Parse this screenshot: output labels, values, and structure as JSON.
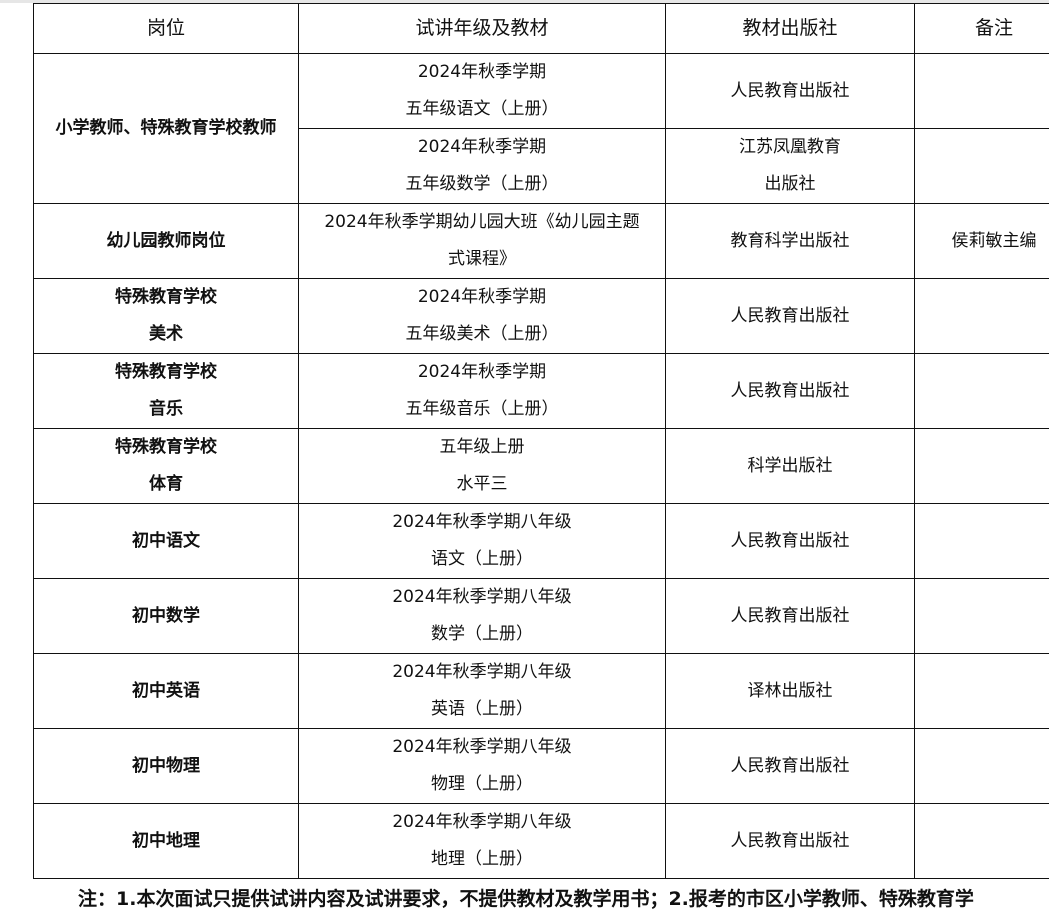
{
  "headers": [
    "岗位",
    "试讲年级及教材",
    "教材出版社",
    "备注"
  ],
  "rows": [
    {
      "position": "小学教师、特殊教育学校教师",
      "material": [
        "2024年秋季学期",
        "五年级语文（上册）"
      ],
      "publisher": [
        "人民教育出版社"
      ],
      "note": ""
    },
    {
      "material": [
        "2024年秋季学期",
        "五年级数学（上册）"
      ],
      "publisher": [
        "江苏凤凰教育",
        "出版社"
      ],
      "note": ""
    },
    {
      "position": [
        "幼儿园教师岗位"
      ],
      "material": [
        "2024年秋季学期幼儿园大班《幼儿园主题",
        "式课程》"
      ],
      "publisher": [
        "教育科学出版社"
      ],
      "note": "侯莉敏主编"
    },
    {
      "position": [
        "特殊教育学校",
        "美术"
      ],
      "material": [
        "2024年秋季学期",
        "五年级美术（上册）"
      ],
      "publisher": [
        "人民教育出版社"
      ],
      "note": ""
    },
    {
      "position": [
        "特殊教育学校",
        "音乐"
      ],
      "material": [
        "2024年秋季学期",
        "五年级音乐（上册）"
      ],
      "publisher": [
        "人民教育出版社"
      ],
      "note": ""
    },
    {
      "position": [
        "特殊教育学校",
        "体育"
      ],
      "material": [
        "五年级上册",
        "水平三"
      ],
      "publisher": [
        "科学出版社"
      ],
      "note": ""
    },
    {
      "position": [
        "初中语文"
      ],
      "material": [
        "2024年秋季学期八年级",
        "语文（上册）"
      ],
      "publisher": [
        "人民教育出版社"
      ],
      "note": ""
    },
    {
      "position": [
        "初中数学"
      ],
      "material": [
        "2024年秋季学期八年级",
        "数学（上册）"
      ],
      "publisher": [
        "人民教育出版社"
      ],
      "note": ""
    },
    {
      "position": [
        "初中英语"
      ],
      "material": [
        "2024年秋季学期八年级",
        "英语（上册）"
      ],
      "publisher": [
        "译林出版社"
      ],
      "note": ""
    },
    {
      "position": [
        "初中物理"
      ],
      "material": [
        "2024年秋季学期八年级",
        "物理（上册）"
      ],
      "publisher": [
        "人民教育出版社"
      ],
      "note": ""
    },
    {
      "position": [
        "初中地理"
      ],
      "material": [
        "2024年秋季学期八年级",
        "地理（上册）"
      ],
      "publisher": [
        "人民教育出版社"
      ],
      "note": ""
    }
  ],
  "footnote": "注：1.本次面试只提供试讲内容及试讲要求，不提供教材及教学用书；2.报考的市区小学教师、特殊教育学"
}
